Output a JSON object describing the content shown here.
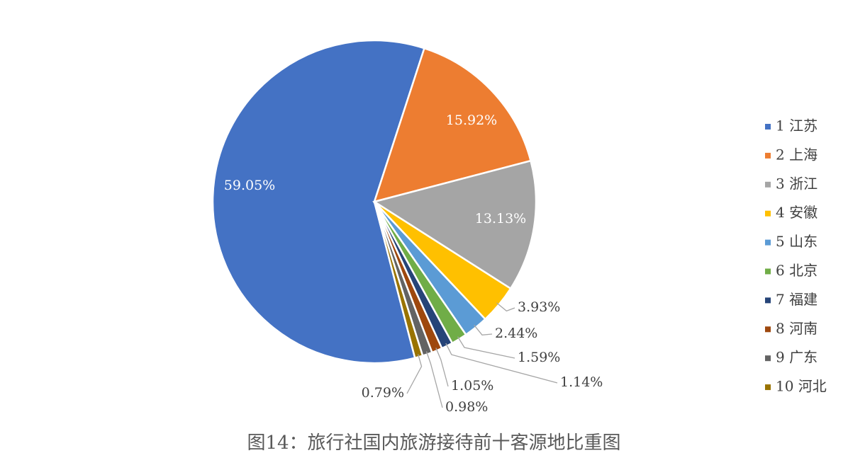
{
  "chart_data": {
    "type": "pie",
    "title": "图14：旅行社国内旅游接待前十客源地比重图",
    "categories": [
      "1 江苏",
      "2 上海",
      "3 浙江",
      "4 安徽",
      "5 山东",
      "6 北京",
      "7 福建",
      "8 河南",
      "9 广东",
      "10 河北"
    ],
    "values": [
      59.05,
      15.92,
      13.13,
      3.93,
      2.44,
      1.59,
      1.14,
      1.05,
      0.98,
      0.79
    ],
    "value_labels": [
      "59.05%",
      "15.92%",
      "13.13%",
      "3.93%",
      "2.44%",
      "1.59%",
      "1.14%",
      "1.05%",
      "0.98%",
      "0.79%"
    ],
    "colors": [
      "#4472c4",
      "#ed7d31",
      "#a5a5a5",
      "#ffc000",
      "#5b9bd5",
      "#70ad47",
      "#264478",
      "#9e480e",
      "#636363",
      "#997300"
    ],
    "legend": "right"
  }
}
